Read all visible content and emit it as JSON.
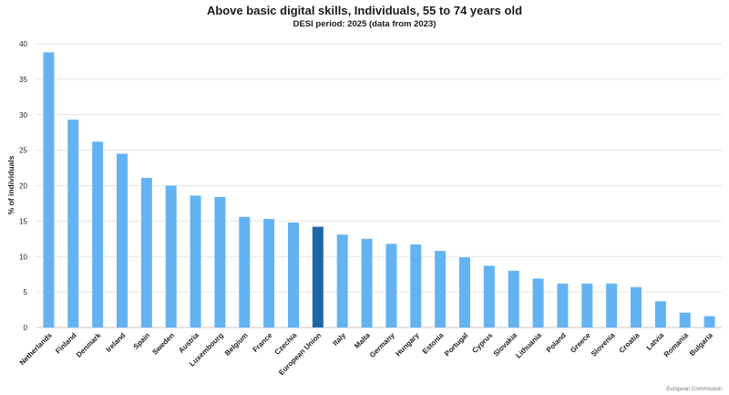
{
  "chart_data": {
    "type": "bar",
    "title": "Above basic digital skills, Individuals, 55 to 74 years old",
    "subtitle": "DESI period: 2025 (data from 2023)",
    "ylabel": "% of individuals",
    "xlabel": "",
    "ylim": [
      0,
      40
    ],
    "yticks": [
      0,
      5,
      10,
      15,
      20,
      25,
      30,
      35,
      40
    ],
    "grid": true,
    "categories": [
      "Netherlands",
      "Finland",
      "Denmark",
      "Ireland",
      "Spain",
      "Sweden",
      "Austria",
      "Luxembourg",
      "Belgium",
      "France",
      "Czechia",
      "European Union",
      "Italy",
      "Malta",
      "Germany",
      "Hungary",
      "Estonia",
      "Portugal",
      "Cyprus",
      "Slovakia",
      "Lithuania",
      "Poland",
      "Greece",
      "Slovenia",
      "Croatia",
      "Latvia",
      "Romania",
      "Bulgaria"
    ],
    "values": [
      38.8,
      29.3,
      26.2,
      24.5,
      21.1,
      20.0,
      18.6,
      18.4,
      15.6,
      15.3,
      14.8,
      14.2,
      13.1,
      12.5,
      11.8,
      11.7,
      10.8,
      9.9,
      8.7,
      8.0,
      6.9,
      6.2,
      6.2,
      6.2,
      5.7,
      3.7,
      2.1,
      1.6
    ],
    "highlight": "European Union",
    "colors": {
      "bar": "#63b3f3",
      "highlight": "#1f66a8",
      "grid": "#e6e6e6"
    }
  },
  "footer": {
    "credit": "European Commission"
  }
}
